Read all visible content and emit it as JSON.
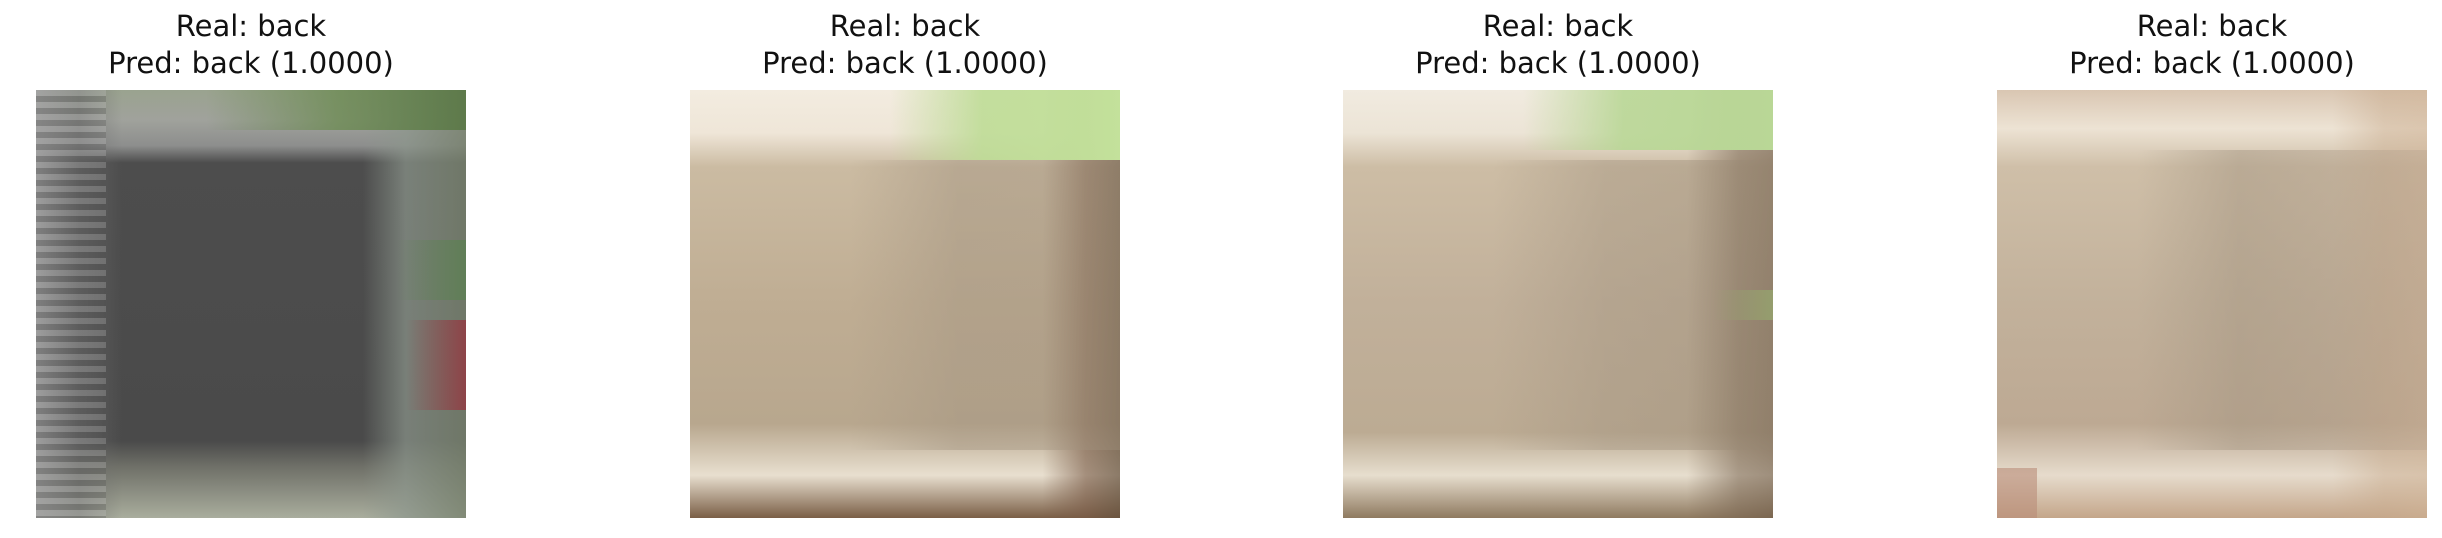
{
  "panels": [
    {
      "real": "Real: back",
      "pred": "Pred: back (1.0000)"
    },
    {
      "real": "Real: back",
      "pred": "Pred: back (1.0000)"
    },
    {
      "real": "Real: back",
      "pred": "Pred: back (1.0000)"
    },
    {
      "real": "Real: back",
      "pred": "Pred: back (1.0000)"
    }
  ]
}
